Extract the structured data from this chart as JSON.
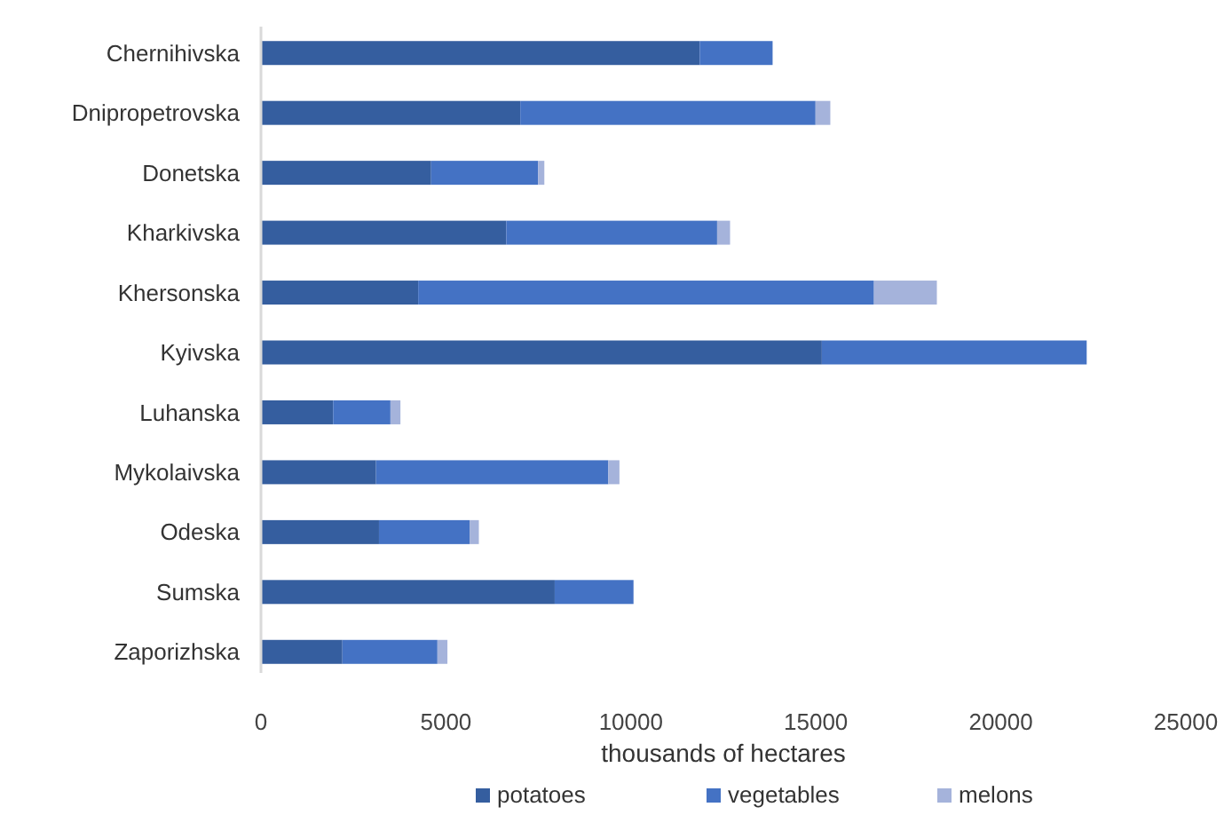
{
  "chart_data": {
    "type": "bar",
    "orientation": "horizontal",
    "stacked": true,
    "xlabel": "thousands of hectares",
    "categories": [
      "Chernihivska",
      "Dnipropetrovska",
      "Donetska",
      "Kharkivska",
      "Khersonska",
      "Kyivska",
      "Luhanska",
      "Mykolaivska",
      "Odeska",
      "Sumska",
      "Zaporizhska"
    ],
    "series": [
      {
        "name": "potatoes",
        "color": "#355e9f",
        "values": [
          11860,
          7010,
          4600,
          6630,
          4250,
          15160,
          1950,
          3110,
          3190,
          7940,
          2200
        ]
      },
      {
        "name": "vegetables",
        "color": "#4472c4",
        "values": [
          1970,
          7980,
          2890,
          5700,
          12320,
          7160,
          1550,
          6280,
          2450,
          2130,
          2570
        ]
      },
      {
        "name": "melons",
        "color": "#a5b3db",
        "values": [
          0,
          400,
          170,
          350,
          1700,
          0,
          270,
          300,
          250,
          0,
          270
        ]
      }
    ],
    "xlim": [
      0,
      25000
    ],
    "xticks": [
      0,
      5000,
      10000,
      15000,
      20000,
      25000
    ],
    "grid": false,
    "legend": "bottom"
  }
}
